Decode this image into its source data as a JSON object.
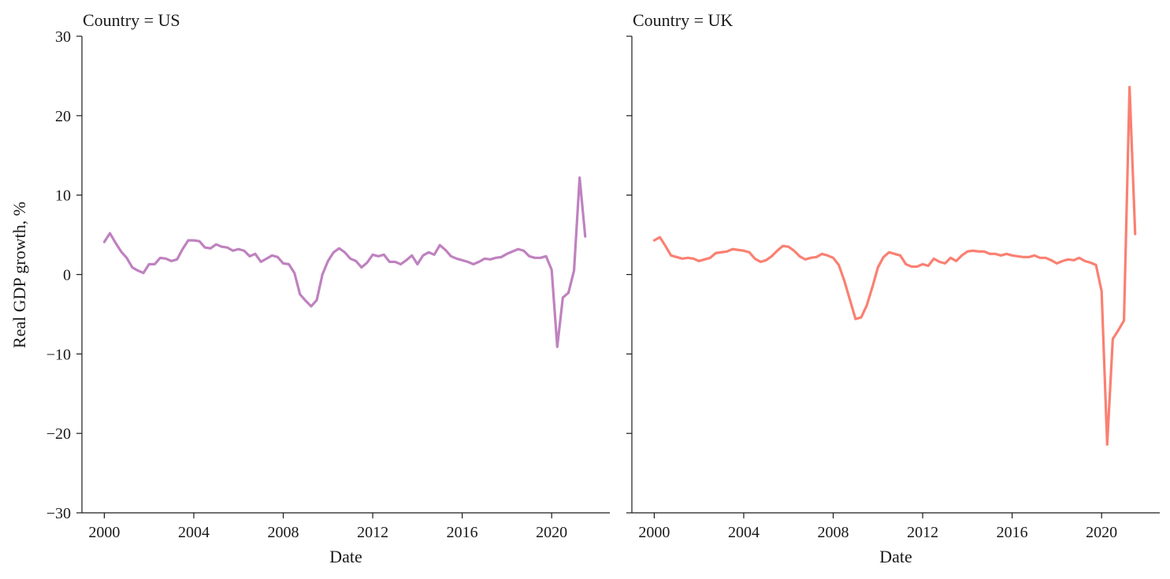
{
  "chart_data": {
    "type": "line",
    "ylabel": "Real GDP growth, %",
    "ylim": [
      -30,
      30
    ],
    "yticks": [
      30,
      20,
      10,
      0,
      -10,
      -20,
      -30
    ],
    "ytick_labels": [
      "30",
      "20",
      "10",
      "0",
      "−10",
      "−20",
      "−30"
    ],
    "xlim": [
      1999,
      2022.6
    ],
    "xticks": [
      2000,
      2004,
      2008,
      2012,
      2016,
      2020
    ],
    "xtick_labels": [
      "2000",
      "2004",
      "2008",
      "2012",
      "2016",
      "2020"
    ],
    "grid": false,
    "shared_y": true,
    "panels": [
      {
        "title": "Country = US",
        "xlabel": "Date",
        "color": "#bf82bf",
        "x": [
          2000.0,
          2000.25,
          2000.5,
          2000.75,
          2001.0,
          2001.25,
          2001.5,
          2001.75,
          2002.0,
          2002.25,
          2002.5,
          2002.75,
          2003.0,
          2003.25,
          2003.5,
          2003.75,
          2004.0,
          2004.25,
          2004.5,
          2004.75,
          2005.0,
          2005.25,
          2005.5,
          2005.75,
          2006.0,
          2006.25,
          2006.5,
          2006.75,
          2007.0,
          2007.25,
          2007.5,
          2007.75,
          2008.0,
          2008.25,
          2008.5,
          2008.75,
          2009.0,
          2009.25,
          2009.5,
          2009.75,
          2010.0,
          2010.25,
          2010.5,
          2010.75,
          2011.0,
          2011.25,
          2011.5,
          2011.75,
          2012.0,
          2012.25,
          2012.5,
          2012.75,
          2013.0,
          2013.25,
          2013.5,
          2013.75,
          2014.0,
          2014.25,
          2014.5,
          2014.75,
          2015.0,
          2015.25,
          2015.5,
          2015.75,
          2016.0,
          2016.25,
          2016.5,
          2016.75,
          2017.0,
          2017.25,
          2017.5,
          2017.75,
          2018.0,
          2018.25,
          2018.5,
          2018.75,
          2019.0,
          2019.25,
          2019.5,
          2019.75,
          2020.0,
          2020.25,
          2020.5,
          2020.75,
          2021.0,
          2021.25,
          2021.5
        ],
        "y": [
          4.1,
          5.2,
          4.0,
          2.9,
          2.1,
          0.9,
          0.5,
          0.2,
          1.3,
          1.3,
          2.1,
          2.0,
          1.7,
          1.9,
          3.2,
          4.3,
          4.3,
          4.2,
          3.4,
          3.3,
          3.8,
          3.5,
          3.4,
          3.0,
          3.2,
          3.0,
          2.3,
          2.6,
          1.6,
          2.0,
          2.4,
          2.2,
          1.4,
          1.3,
          0.2,
          -2.5,
          -3.3,
          -4.0,
          -3.2,
          0.0,
          1.7,
          2.8,
          3.3,
          2.8,
          2.0,
          1.7,
          0.9,
          1.5,
          2.5,
          2.3,
          2.5,
          1.6,
          1.6,
          1.3,
          1.8,
          2.4,
          1.3,
          2.4,
          2.8,
          2.5,
          3.7,
          3.1,
          2.3,
          2.0,
          1.8,
          1.6,
          1.3,
          1.6,
          2.0,
          1.9,
          2.1,
          2.2,
          2.6,
          2.9,
          3.2,
          3.0,
          2.3,
          2.1,
          2.1,
          2.3,
          0.6,
          -9.1,
          -2.9,
          -2.3,
          0.5,
          12.2,
          4.8
        ]
      },
      {
        "title": "Country = UK",
        "xlabel": "Date",
        "color": "#fa8072",
        "x": [
          2000.0,
          2000.25,
          2000.5,
          2000.75,
          2001.0,
          2001.25,
          2001.5,
          2001.75,
          2002.0,
          2002.25,
          2002.5,
          2002.75,
          2003.0,
          2003.25,
          2003.5,
          2003.75,
          2004.0,
          2004.25,
          2004.5,
          2004.75,
          2005.0,
          2005.25,
          2005.5,
          2005.75,
          2006.0,
          2006.25,
          2006.5,
          2006.75,
          2007.0,
          2007.25,
          2007.5,
          2007.75,
          2008.0,
          2008.25,
          2008.5,
          2008.75,
          2009.0,
          2009.25,
          2009.5,
          2009.75,
          2010.0,
          2010.25,
          2010.5,
          2010.75,
          2011.0,
          2011.25,
          2011.5,
          2011.75,
          2012.0,
          2012.25,
          2012.5,
          2012.75,
          2013.0,
          2013.25,
          2013.5,
          2013.75,
          2014.0,
          2014.25,
          2014.5,
          2014.75,
          2015.0,
          2015.25,
          2015.5,
          2015.75,
          2016.0,
          2016.25,
          2016.5,
          2016.75,
          2017.0,
          2017.25,
          2017.5,
          2017.75,
          2018.0,
          2018.25,
          2018.5,
          2018.75,
          2019.0,
          2019.25,
          2019.5,
          2019.75,
          2020.0,
          2020.25,
          2020.5,
          2020.75,
          2021.0,
          2021.25,
          2021.5
        ],
        "y": [
          4.3,
          4.7,
          3.6,
          2.4,
          2.2,
          2.0,
          2.1,
          2.0,
          1.7,
          1.9,
          2.1,
          2.7,
          2.8,
          2.9,
          3.2,
          3.1,
          3.0,
          2.8,
          2.0,
          1.6,
          1.8,
          2.3,
          3.0,
          3.6,
          3.5,
          3.0,
          2.3,
          1.9,
          2.1,
          2.2,
          2.6,
          2.4,
          2.1,
          1.2,
          -0.8,
          -3.2,
          -5.6,
          -5.4,
          -3.9,
          -1.6,
          0.9,
          2.2,
          2.8,
          2.6,
          2.4,
          1.3,
          1.0,
          1.0,
          1.3,
          1.1,
          2.0,
          1.6,
          1.4,
          2.1,
          1.7,
          2.4,
          2.9,
          3.0,
          2.9,
          2.9,
          2.6,
          2.6,
          2.4,
          2.6,
          2.4,
          2.3,
          2.2,
          2.2,
          2.4,
          2.1,
          2.1,
          1.8,
          1.4,
          1.7,
          1.9,
          1.8,
          2.1,
          1.7,
          1.5,
          1.2,
          -2.1,
          -21.4,
          -8.1,
          -7.0,
          -5.8,
          23.6,
          5.1
        ]
      }
    ]
  }
}
